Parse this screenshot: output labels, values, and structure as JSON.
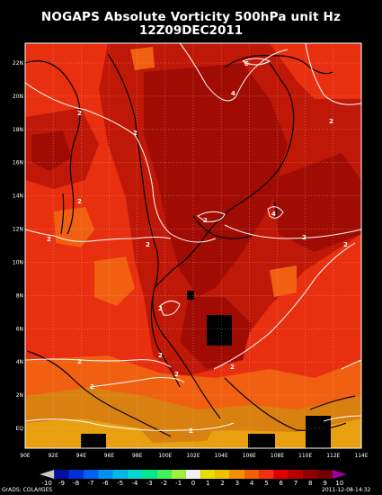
{
  "title_line1": "NOGAPS Absolute Vorticity 500hPa unit Hz",
  "title_line2": "12Z09DEC2011",
  "lat_labels": [
    "22N",
    "20N",
    "18N",
    "16N",
    "14N",
    "12N",
    "10N",
    "8N",
    "6N",
    "4N",
    "2N",
    "EQ"
  ],
  "lon_labels": [
    "90E",
    "92E",
    "94E",
    "96E",
    "98E",
    "100E",
    "102E",
    "104E",
    "106E",
    "108E",
    "110E",
    "112E",
    "114E"
  ],
  "colorbar": {
    "labels": [
      "-10",
      "-9",
      "-8",
      "-7",
      "-6",
      "-5",
      "-4",
      "-3",
      "-2",
      "-1",
      "0",
      "1",
      "2",
      "3",
      "4",
      "5",
      "6",
      "7",
      "8",
      "9",
      "10"
    ],
    "colors": [
      "#c9c9c9",
      "#0010a0",
      "#0030d8",
      "#0060f0",
      "#0090f0",
      "#00b8e8",
      "#00d8d0",
      "#00e890",
      "#40f060",
      "#a0f040",
      "#f0f0f0",
      "#e8e000",
      "#f0c000",
      "#f09000",
      "#f06000",
      "#f03010",
      "#e00000",
      "#b80000",
      "#900000",
      "#700000",
      "#a000a0"
    ]
  },
  "contour_labels": [
    "2",
    "4",
    "6"
  ],
  "credit_left": "GrADS: COLA/IGES",
  "credit_right": "2011-12-08-14:32",
  "field_colors": {
    "bg": "#e83010",
    "dark": "#c01808",
    "darker": "#a00c04",
    "orange": "#f06010",
    "gold": "#d88010",
    "yellow": "#e8a010",
    "black": "#000000"
  }
}
